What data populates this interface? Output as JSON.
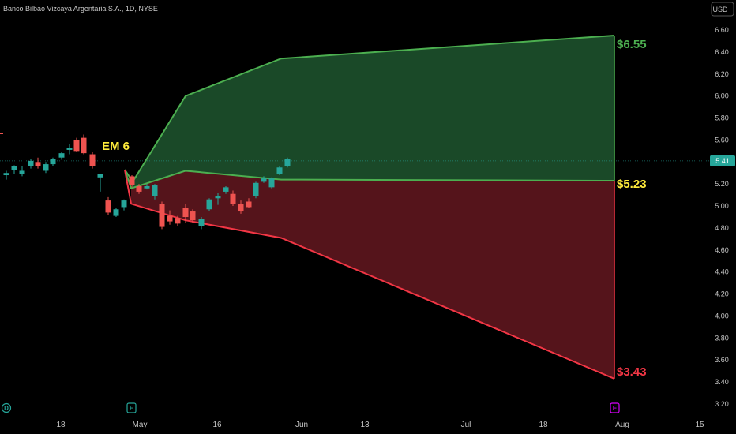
{
  "title": "Banco Bilbao Vizcaya Argentaria S.A., 1D, NYSE",
  "currency_label": "USD",
  "colors": {
    "background": "#000000",
    "up": "#26a69a",
    "down": "#ef5350",
    "green_fill": "#1b4d2a",
    "green_line": "#4caf50",
    "red_fill": "#5a151c",
    "red_line": "#f23645",
    "mid_label": "#ffeb3b",
    "price_tag": "#26a69a",
    "e_marker": "#d500f9"
  },
  "chart_data": {
    "type": "candlestick",
    "title": "Banco Bilbao Vizcaya Argentaria S.A., 1D, NYSE",
    "ylim": [
      3.12,
      6.72
    ],
    "y_ticks": [
      "6.60",
      "6.40",
      "6.20",
      "6.00",
      "5.80",
      "5.60",
      "5.40",
      "5.20",
      "5.00",
      "4.80",
      "4.60",
      "4.40",
      "4.20",
      "4.00",
      "3.80",
      "3.60",
      "3.40",
      "3.20"
    ],
    "x_ticks": [
      "18",
      "May",
      "16",
      "Jun",
      "13",
      "Jul",
      "18",
      "Aug",
      "15"
    ],
    "last_price": "5.41",
    "candles": [
      {
        "o": 5.28,
        "h": 5.32,
        "l": 5.24,
        "c": 5.3
      },
      {
        "o": 5.33,
        "h": 5.37,
        "l": 5.29,
        "c": 5.36
      },
      {
        "o": 5.29,
        "h": 5.36,
        "l": 5.27,
        "c": 5.32
      },
      {
        "o": 5.36,
        "h": 5.43,
        "l": 5.34,
        "c": 5.41
      },
      {
        "o": 5.4,
        "h": 5.44,
        "l": 5.34,
        "c": 5.36
      },
      {
        "o": 5.32,
        "h": 5.4,
        "l": 5.3,
        "c": 5.38
      },
      {
        "o": 5.38,
        "h": 5.44,
        "l": 5.36,
        "c": 5.43
      },
      {
        "o": 5.44,
        "h": 5.49,
        "l": 5.42,
        "c": 5.48
      },
      {
        "o": 5.51,
        "h": 5.56,
        "l": 5.47,
        "c": 5.53
      },
      {
        "o": 5.6,
        "h": 5.62,
        "l": 5.49,
        "c": 5.5
      },
      {
        "o": 5.62,
        "h": 5.65,
        "l": 5.47,
        "c": 5.48
      },
      {
        "o": 5.47,
        "h": 5.49,
        "l": 5.34,
        "c": 5.36
      },
      {
        "o": 5.26,
        "h": 5.28,
        "l": 5.13,
        "c": 5.29
      },
      {
        "o": 5.05,
        "h": 5.08,
        "l": 4.92,
        "c": 4.94
      },
      {
        "o": 4.91,
        "h": 4.98,
        "l": 4.9,
        "c": 4.97
      },
      {
        "o": 4.99,
        "h": 5.06,
        "l": 4.96,
        "c": 5.05
      },
      {
        "o": 5.27,
        "h": 5.28,
        "l": 5.17,
        "c": 5.19
      },
      {
        "o": 5.18,
        "h": 5.2,
        "l": 5.11,
        "c": 5.13
      },
      {
        "o": 5.16,
        "h": 5.2,
        "l": 5.15,
        "c": 5.18
      },
      {
        "o": 5.09,
        "h": 5.2,
        "l": 5.06,
        "c": 5.19
      },
      {
        "o": 5.02,
        "h": 5.04,
        "l": 4.79,
        "c": 4.81
      },
      {
        "o": 4.91,
        "h": 4.96,
        "l": 4.83,
        "c": 4.86
      },
      {
        "o": 4.89,
        "h": 4.91,
        "l": 4.82,
        "c": 4.84
      },
      {
        "o": 4.98,
        "h": 5.02,
        "l": 4.85,
        "c": 4.9
      },
      {
        "o": 4.95,
        "h": 4.97,
        "l": 4.85,
        "c": 4.87
      },
      {
        "o": 4.82,
        "h": 4.9,
        "l": 4.79,
        "c": 4.88
      },
      {
        "o": 4.97,
        "h": 5.07,
        "l": 4.95,
        "c": 5.06
      },
      {
        "o": 5.07,
        "h": 5.12,
        "l": 5.01,
        "c": 5.09
      },
      {
        "o": 5.13,
        "h": 5.18,
        "l": 5.11,
        "c": 5.17
      },
      {
        "o": 5.11,
        "h": 5.14,
        "l": 5.0,
        "c": 5.02
      },
      {
        "o": 5.02,
        "h": 5.05,
        "l": 4.93,
        "c": 4.95
      },
      {
        "o": 5.04,
        "h": 5.07,
        "l": 4.98,
        "c": 4.99
      },
      {
        "o": 5.09,
        "h": 5.22,
        "l": 5.07,
        "c": 5.21
      },
      {
        "o": 5.22,
        "h": 5.27,
        "l": 5.21,
        "c": 5.25
      },
      {
        "o": 5.17,
        "h": 5.26,
        "l": 5.16,
        "c": 5.25
      },
      {
        "o": 5.29,
        "h": 5.36,
        "l": 5.28,
        "c": 5.35
      },
      {
        "o": 5.36,
        "h": 5.44,
        "l": 5.35,
        "c": 5.43
      }
    ],
    "expected_move": {
      "label": "EM 6",
      "upper_label": "$6.55",
      "mid_label": "$5.23",
      "lower_label": "$3.43",
      "upper": [
        5.3,
        6.0,
        6.34,
        6.55
      ],
      "mid": [
        5.3,
        5.32,
        5.24,
        5.23
      ],
      "lower": [
        5.3,
        4.87,
        4.71,
        3.43
      ]
    },
    "earnings_markers": [
      "E",
      "E"
    ],
    "dividend_markers": [
      "D"
    ]
  }
}
